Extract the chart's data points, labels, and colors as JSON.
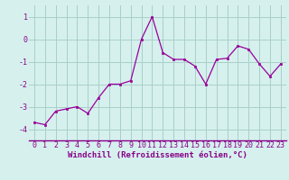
{
  "x": [
    0,
    1,
    2,
    3,
    4,
    5,
    6,
    7,
    8,
    9,
    10,
    11,
    12,
    13,
    14,
    15,
    16,
    17,
    18,
    19,
    20,
    21,
    22,
    23
  ],
  "y": [
    -3.7,
    -3.8,
    -3.2,
    -3.1,
    -3.0,
    -3.3,
    -2.6,
    -2.0,
    -2.0,
    -1.85,
    0.0,
    1.0,
    -0.6,
    -0.9,
    -0.9,
    -1.2,
    -2.0,
    -0.9,
    -0.85,
    -0.3,
    -0.45,
    -1.1,
    -1.65,
    -1.1
  ],
  "line_color": "#990099",
  "marker": "s",
  "markersize": 2.0,
  "linewidth": 0.9,
  "xlabel": "Windchill (Refroidissement éolien,°C)",
  "xlabel_fontsize": 6.5,
  "xlabel_color": "#880088",
  "ylabel_ticks": [
    -4,
    -3,
    -2,
    -1,
    0,
    1
  ],
  "xtick_labels": [
    "0",
    "1",
    "2",
    "3",
    "4",
    "5",
    "6",
    "7",
    "8",
    "9",
    "10",
    "11",
    "12",
    "13",
    "14",
    "15",
    "16",
    "17",
    "18",
    "19",
    "20",
    "21",
    "22",
    "23"
  ],
  "ylim": [
    -4.5,
    1.5
  ],
  "xlim": [
    -0.5,
    23.5
  ],
  "bg_color": "#d6f0ee",
  "grid_color": "#a8cfc8",
  "tick_color": "#880088",
  "tick_fontsize": 6.0,
  "border_color": "#880088"
}
